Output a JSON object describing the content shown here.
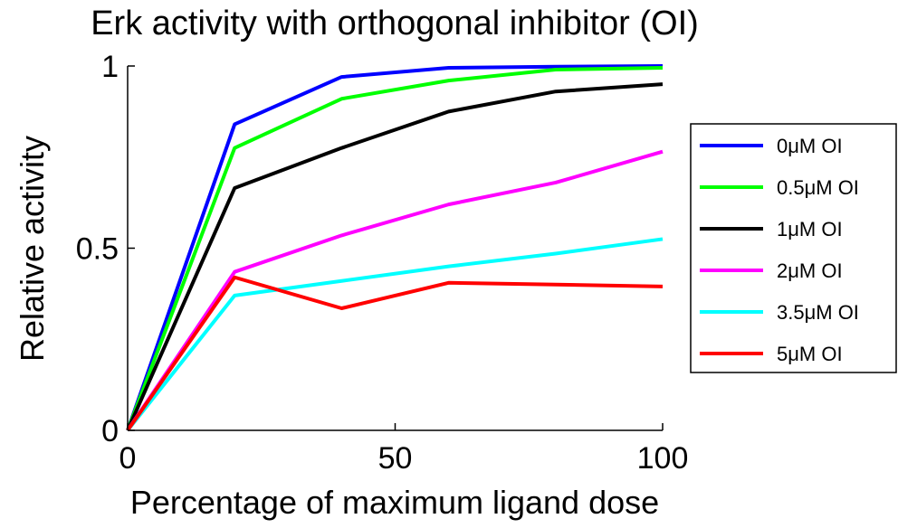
{
  "chart_data": {
    "type": "line",
    "title": "Erk activity with orthogonal inhibitor (OI)",
    "xlabel": "Percentage of maximum ligand dose",
    "ylabel": "Relative activity",
    "xlim": [
      0,
      100
    ],
    "ylim": [
      0,
      1
    ],
    "xticks": [
      0,
      50,
      100
    ],
    "xtick_labels": [
      "0",
      "50",
      "100"
    ],
    "yticks": [
      0,
      0.5,
      1
    ],
    "ytick_labels": [
      "0",
      "0.5",
      "1"
    ],
    "grid": false,
    "legend_position": "right",
    "x": [
      0,
      20,
      40,
      60,
      80,
      100
    ],
    "series": [
      {
        "name": "0μM OI",
        "color": "#0000ff",
        "values": [
          0,
          0.84,
          0.97,
          0.995,
          0.998,
          1.0
        ]
      },
      {
        "name": "0.5μM OI",
        "color": "#00ff00",
        "values": [
          0,
          0.775,
          0.91,
          0.96,
          0.99,
          0.995
        ]
      },
      {
        "name": "1μM OI",
        "color": "#000000",
        "values": [
          0,
          0.665,
          0.775,
          0.875,
          0.93,
          0.95
        ]
      },
      {
        "name": "2μM OI",
        "color": "#ff00ff",
        "values": [
          0,
          0.435,
          0.535,
          0.62,
          0.68,
          0.765
        ]
      },
      {
        "name": "3.5μM OI",
        "color": "#00ffff",
        "values": [
          0,
          0.37,
          0.41,
          0.45,
          0.485,
          0.525
        ]
      },
      {
        "name": "5μM OI",
        "color": "#ff0000",
        "values": [
          0,
          0.42,
          0.335,
          0.405,
          0.4,
          0.395
        ]
      }
    ]
  }
}
